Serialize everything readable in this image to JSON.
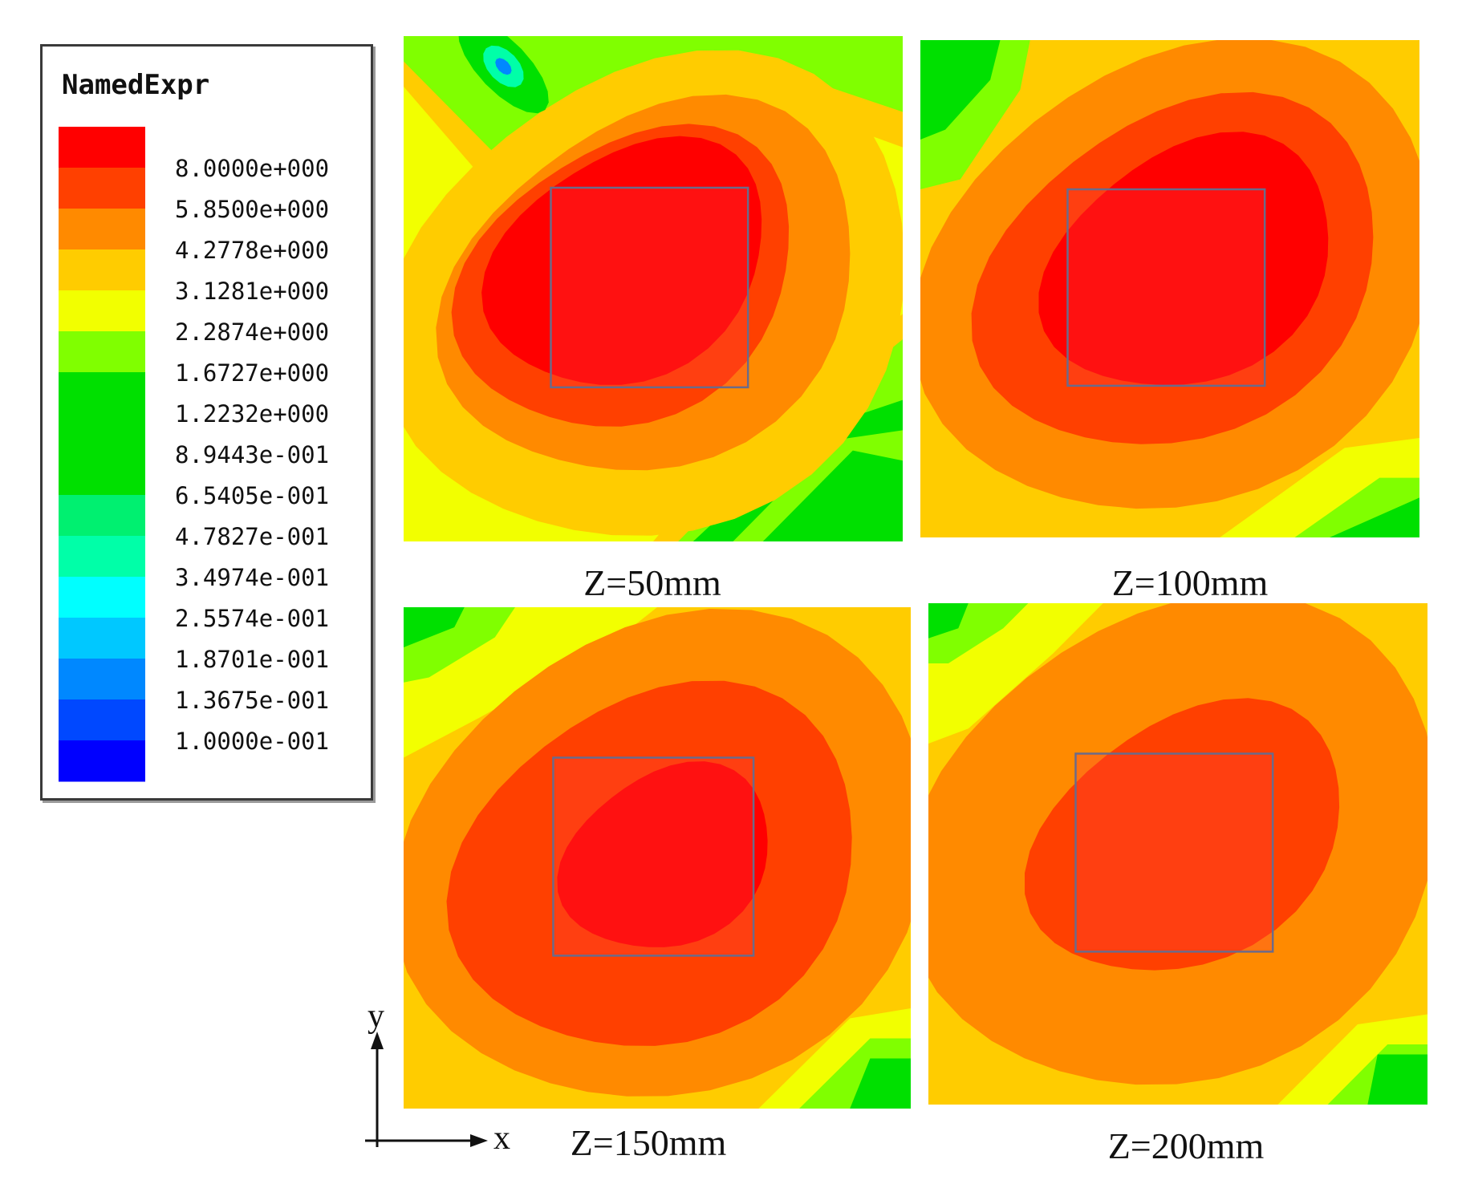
{
  "chart_data": {
    "type": "heatmap",
    "legend": {
      "title": "NamedExpr",
      "levels": [
        "8.0000e+000",
        "5.8500e+000",
        "4.2778e+000",
        "3.1281e+000",
        "2.2874e+000",
        "1.6727e+000",
        "1.2232e+000",
        "8.9443e-001",
        "6.5405e-001",
        "4.7827e-001",
        "3.4974e-001",
        "2.5574e-001",
        "1.8701e-001",
        "1.3675e-001",
        "1.0000e-001"
      ],
      "colors": [
        "#ff0000",
        "#ff4000",
        "#ff8a00",
        "#ffcc00",
        "#f2ff00",
        "#80ff00",
        "#00e000",
        "#00e000",
        "#00e000",
        "#00f070",
        "#00ffa8",
        "#00ffff",
        "#00c8ff",
        "#0088ff",
        "#0048ff",
        "#0000ff"
      ]
    },
    "panels": [
      {
        "label": "Z=50mm",
        "max_level": "8.0000e+000",
        "min_level": "1.8701e-001"
      },
      {
        "label": "Z=100mm",
        "max_level": "8.0000e+000",
        "min_level": "1.2232e+000"
      },
      {
        "label": "Z=150mm",
        "max_level": "8.0000e+000",
        "min_level": "1.2232e+000"
      },
      {
        "label": "Z=200mm",
        "max_level": "5.8500e+000",
        "min_level": "1.2232e+000"
      }
    ],
    "axes": {
      "x_label": "x",
      "y_label": "y"
    }
  }
}
